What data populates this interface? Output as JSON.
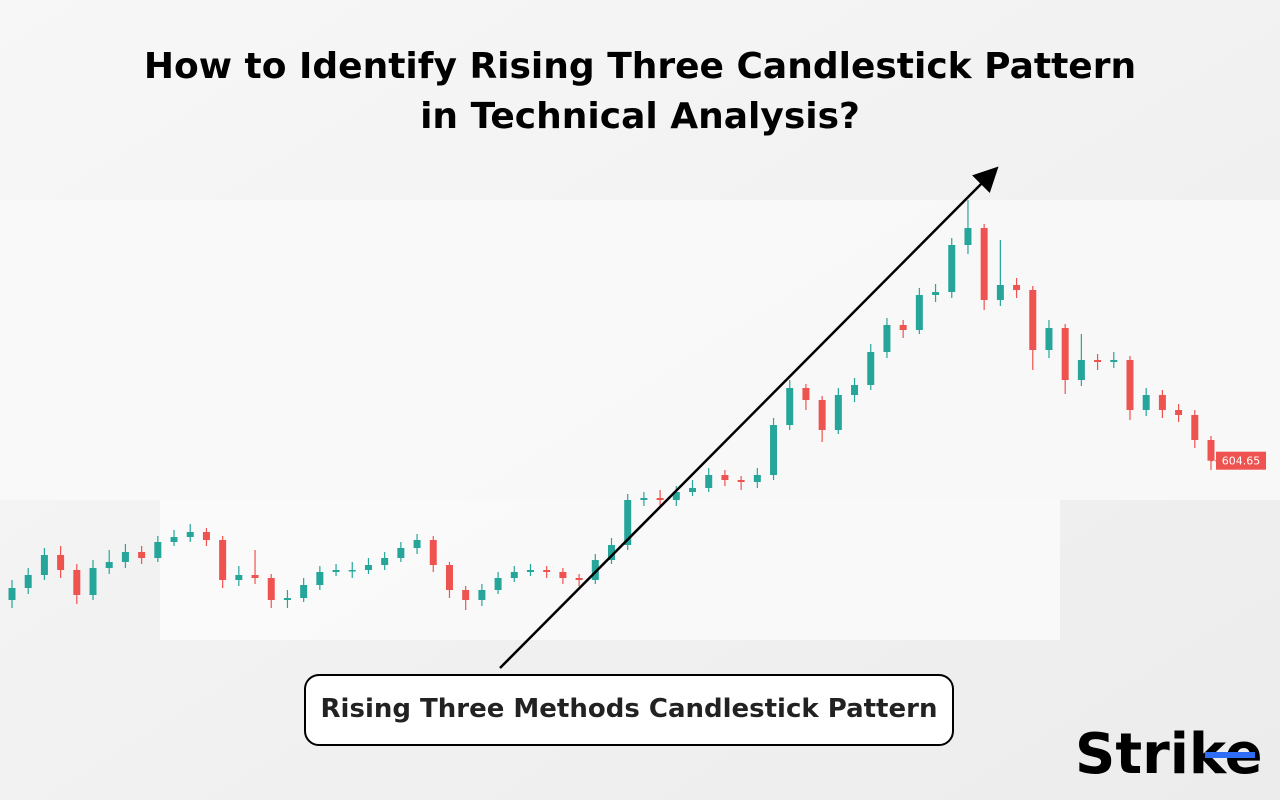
{
  "chart_data": {
    "type": "candlestick",
    "title": "How to Identify Rising Three Candlestick Pattern",
    "subtitle": "in Technical Analysis?",
    "annotation": "Rising Three Methods Candlestick Pattern",
    "brand": "Strike",
    "up_color": "#26a69a",
    "down_color": "#ef5350",
    "ylim": [
      500,
      750
    ],
    "open": [
      535,
      541,
      547.5,
      557.5,
      550,
      537.5,
      551,
      554,
      559,
      556,
      564,
      566.5,
      569,
      565,
      545,
      547.5,
      546,
      535,
      536,
      542.5,
      549,
      550,
      550,
      552.5,
      556,
      561,
      565,
      552.5,
      540,
      535,
      540,
      546,
      549,
      550,
      549,
      546,
      545,
      555,
      562.5,
      585,
      586,
      585,
      589,
      591,
      597.5,
      595,
      594,
      597.5,
      622.5,
      641,
      635,
      620,
      637.5,
      642.5,
      659,
      672.5,
      670,
      687.5,
      689,
      712.5,
      721,
      685,
      692.5,
      690,
      660,
      671,
      645,
      655,
      654,
      655,
      630,
      637.5,
      630,
      627.5,
      615
    ],
    "high": [
      545,
      551,
      561,
      562,
      553,
      555,
      560,
      563,
      562,
      567,
      570,
      573,
      571,
      567,
      552,
      560,
      548,
      540,
      546,
      552,
      553,
      554,
      556,
      559,
      564,
      568,
      567,
      554,
      542,
      543,
      549,
      552,
      553,
      552,
      551,
      548,
      558,
      566,
      588,
      589,
      590,
      592,
      595,
      601,
      600,
      597,
      601,
      626,
      645,
      643,
      637,
      641,
      646,
      663,
      676,
      675,
      691,
      693,
      716,
      735,
      723,
      715,
      696,
      692,
      675,
      673,
      668,
      658,
      659,
      657,
      641,
      640,
      633,
      630,
      617
    ],
    "low": [
      531,
      538,
      545,
      546,
      533,
      535,
      548,
      551,
      553,
      554,
      562,
      564,
      562,
      541,
      542,
      543,
      531,
      531,
      534,
      540,
      547,
      546,
      548,
      550,
      554,
      558,
      549,
      536,
      530,
      532,
      538,
      544,
      547,
      546,
      543,
      542,
      543,
      553,
      560,
      582,
      582,
      582,
      587,
      589,
      592,
      590,
      591,
      595,
      620,
      630,
      614,
      618,
      634,
      640,
      656,
      666,
      668,
      684,
      686,
      708,
      680,
      682,
      686,
      650,
      656,
      638,
      642,
      650,
      651,
      625,
      627,
      626,
      624,
      611,
      600
    ],
    "close": [
      541,
      547.5,
      557.5,
      550,
      537.5,
      551,
      554,
      559,
      556,
      564,
      566.5,
      569,
      565,
      545,
      547.5,
      546,
      535,
      536,
      542.5,
      549,
      550,
      550,
      552.5,
      556,
      561,
      565,
      552.5,
      540,
      535,
      540,
      546,
      549,
      550,
      549,
      546,
      545,
      555,
      562.5,
      585,
      586,
      585,
      589,
      591,
      597.5,
      595,
      594,
      597.5,
      622.5,
      641,
      635,
      620,
      637.5,
      642.5,
      659,
      672.5,
      670,
      687.5,
      689,
      712.5,
      721,
      685,
      692.5,
      690,
      660,
      671,
      645,
      655,
      654,
      655,
      630,
      637.5,
      630,
      627.5,
      615,
      604.65
    ]
  }
}
